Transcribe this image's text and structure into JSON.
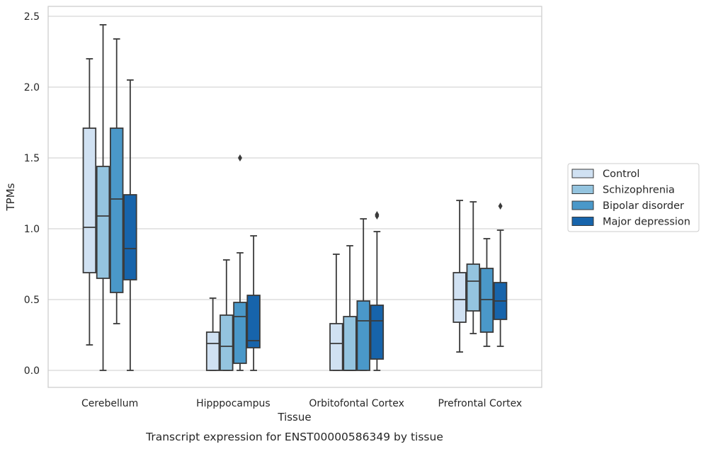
{
  "chart_data": {
    "type": "box",
    "xlabel": "Tissue",
    "ylabel": "TPMs",
    "caption": "Transcript expression for ENST00000586349 by tissue",
    "ylim": [
      -0.12,
      2.57
    ],
    "yticks": [
      "0.0",
      "0.5",
      "1.0",
      "1.5",
      "2.0",
      "2.5"
    ],
    "ytick_values": [
      0.0,
      0.5,
      1.0,
      1.5,
      2.0,
      2.5
    ],
    "grid": "horizontal",
    "legend_position": "right",
    "categories": [
      "Cerebellum",
      "Hipppocampus",
      "Orbitofontal Cortex",
      "Prefrontal Cortex"
    ],
    "series": [
      {
        "name": "Control",
        "color": "#d0e1f2",
        "boxes": [
          {
            "whislo": 0.18,
            "q1": 0.69,
            "med": 1.01,
            "q3": 1.71,
            "whishi": 2.2,
            "fliers": []
          },
          {
            "whislo": 0.0,
            "q1": 0.0,
            "med": 0.19,
            "q3": 0.27,
            "whishi": 0.51,
            "fliers": []
          },
          {
            "whislo": 0.0,
            "q1": 0.0,
            "med": 0.19,
            "q3": 0.33,
            "whishi": 0.82,
            "fliers": []
          },
          {
            "whislo": 0.13,
            "q1": 0.34,
            "med": 0.5,
            "q3": 0.69,
            "whishi": 1.2,
            "fliers": []
          }
        ]
      },
      {
        "name": "Schizophrenia",
        "color": "#94c4df",
        "boxes": [
          {
            "whislo": 0.0,
            "q1": 0.65,
            "med": 1.09,
            "q3": 1.44,
            "whishi": 2.44,
            "fliers": []
          },
          {
            "whislo": 0.0,
            "q1": 0.0,
            "med": 0.17,
            "q3": 0.39,
            "whishi": 0.78,
            "fliers": []
          },
          {
            "whislo": 0.0,
            "q1": 0.0,
            "med": 0.0,
            "q3": 0.38,
            "whishi": 0.88,
            "fliers": []
          },
          {
            "whislo": 0.26,
            "q1": 0.42,
            "med": 0.63,
            "q3": 0.75,
            "whishi": 1.19,
            "fliers": []
          }
        ]
      },
      {
        "name": "Bipolar disorder",
        "color": "#4a98c9",
        "boxes": [
          {
            "whislo": 0.33,
            "q1": 0.55,
            "med": 1.21,
            "q3": 1.71,
            "whishi": 2.34,
            "fliers": []
          },
          {
            "whislo": 0.0,
            "q1": 0.05,
            "med": 0.38,
            "q3": 0.48,
            "whishi": 0.83,
            "fliers": [
              1.5
            ]
          },
          {
            "whislo": 0.0,
            "q1": 0.0,
            "med": 0.35,
            "q3": 0.49,
            "whishi": 1.07,
            "fliers": []
          },
          {
            "whislo": 0.17,
            "q1": 0.27,
            "med": 0.5,
            "q3": 0.72,
            "whishi": 0.93,
            "fliers": []
          }
        ]
      },
      {
        "name": "Major depression",
        "color": "#1764ab",
        "boxes": [
          {
            "whislo": 0.0,
            "q1": 0.64,
            "med": 0.86,
            "q3": 1.24,
            "whishi": 2.05,
            "fliers": []
          },
          {
            "whislo": 0.0,
            "q1": 0.16,
            "med": 0.21,
            "q3": 0.53,
            "whishi": 0.95,
            "fliers": []
          },
          {
            "whislo": 0.0,
            "q1": 0.08,
            "med": 0.35,
            "q3": 0.46,
            "whishi": 0.98,
            "fliers": [
              1.09,
              1.1
            ]
          },
          {
            "whislo": 0.17,
            "q1": 0.36,
            "med": 0.49,
            "q3": 0.62,
            "whishi": 0.99,
            "fliers": [
              1.16
            ]
          }
        ]
      }
    ]
  }
}
